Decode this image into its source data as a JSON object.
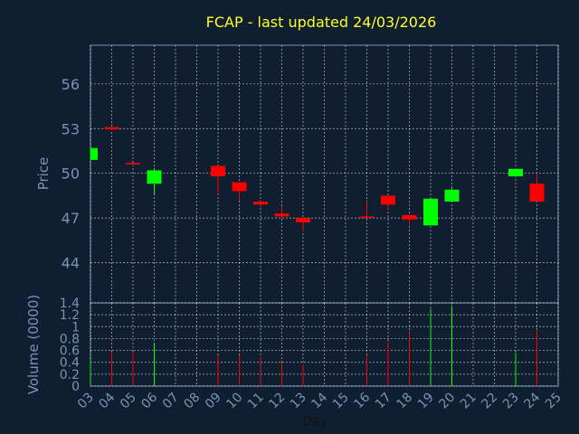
{
  "chart_data": {
    "type": "candlestick",
    "title": "FCAP - last updated 24/03/2026",
    "xlabel": "Day",
    "price_ylabel": "Price",
    "volume_ylabel": "Volume (0000)",
    "x_ticks": [
      "03",
      "04",
      "05",
      "06",
      "07",
      "08",
      "09",
      "10",
      "11",
      "12",
      "13",
      "14",
      "15",
      "16",
      "17",
      "18",
      "19",
      "20",
      "21",
      "22",
      "23",
      "24",
      "25"
    ],
    "price_ylim": [
      41.3,
      58.6
    ],
    "price_ticks": [
      44,
      47,
      50,
      53,
      56
    ],
    "volume_ylim": [
      0,
      1.4
    ],
    "volume_ticks": [
      "0",
      "0.2",
      "0.4",
      "0.6",
      "0.8",
      "1",
      "1.2",
      "1.4"
    ],
    "grid": true,
    "colors": {
      "background": "#0f1e30",
      "up": "#00ff00",
      "down": "#ff0000",
      "grid": "#ffffff",
      "title": "#ffff2a",
      "text": "#7a93b5"
    },
    "candles": [
      {
        "day": "03",
        "open": 50.9,
        "high": 51.7,
        "low": 50.9,
        "close": 51.7,
        "volume": 0.45
      },
      {
        "day": "04",
        "open": 53.1,
        "high": 53.1,
        "low": 52.9,
        "close": 52.95,
        "volume": 0.58
      },
      {
        "day": "05",
        "open": 50.7,
        "high": 50.7,
        "low": 50.5,
        "close": 50.6,
        "volume": 0.57
      },
      {
        "day": "06",
        "open": 49.3,
        "high": 50.3,
        "low": 48.6,
        "close": 50.2,
        "volume": 0.72
      },
      {
        "day": "09",
        "open": 50.5,
        "high": 50.5,
        "low": 48.6,
        "close": 49.8,
        "volume": 0.52
      },
      {
        "day": "10",
        "open": 49.4,
        "high": 49.4,
        "low": 48.2,
        "close": 48.8,
        "volume": 0.52
      },
      {
        "day": "11",
        "open": 48.1,
        "high": 48.1,
        "low": 47.7,
        "close": 47.9,
        "volume": 0.5
      },
      {
        "day": "12",
        "open": 47.3,
        "high": 47.8,
        "low": 47.0,
        "close": 47.1,
        "volume": 0.4
      },
      {
        "day": "13",
        "open": 47.0,
        "high": 47.0,
        "low": 46.1,
        "close": 46.7,
        "volume": 0.37
      },
      {
        "day": "16",
        "open": 47.1,
        "high": 48.1,
        "low": 47.0,
        "close": 47.05,
        "volume": 0.52
      },
      {
        "day": "17",
        "open": 48.5,
        "high": 48.5,
        "low": 47.6,
        "close": 47.9,
        "volume": 0.75
      },
      {
        "day": "18",
        "open": 47.2,
        "high": 47.2,
        "low": 46.5,
        "close": 46.9,
        "volume": 0.9
      },
      {
        "day": "19",
        "open": 46.5,
        "high": 48.3,
        "low": 46.5,
        "close": 48.3,
        "volume": 1.3
      },
      {
        "day": "20",
        "open": 48.1,
        "high": 49.1,
        "low": 48.1,
        "close": 48.9,
        "volume": 1.35
      },
      {
        "day": "23",
        "open": 49.8,
        "high": 50.3,
        "low": 49.8,
        "close": 50.3,
        "volume": 0.57
      },
      {
        "day": "24",
        "open": 49.3,
        "high": 50.0,
        "low": 48.1,
        "close": 48.1,
        "volume": 0.93
      }
    ]
  }
}
